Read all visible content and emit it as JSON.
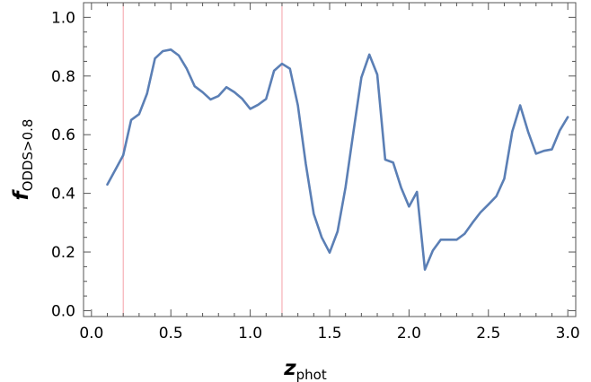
{
  "chart_data": {
    "type": "line",
    "xlabel": {
      "main": "z",
      "sub": "phot"
    },
    "ylabel": {
      "main": "f",
      "sub": "ODDS>0.8"
    },
    "xlim": [
      -0.05,
      3.05
    ],
    "ylim": [
      -0.02,
      1.05
    ],
    "x_ticks": [
      {
        "value": 0.0,
        "label": "0.0"
      },
      {
        "value": 0.5,
        "label": "0.5"
      },
      {
        "value": 1.0,
        "label": "1.0"
      },
      {
        "value": 1.5,
        "label": "1.5"
      },
      {
        "value": 2.0,
        "label": "2.0"
      },
      {
        "value": 2.5,
        "label": "2.5"
      },
      {
        "value": 3.0,
        "label": "3.0"
      }
    ],
    "y_ticks": [
      {
        "value": 0.0,
        "label": "0.0"
      },
      {
        "value": 0.2,
        "label": "0.2"
      },
      {
        "value": 0.4,
        "label": "0.4"
      },
      {
        "value": 0.6,
        "label": "0.6"
      },
      {
        "value": 0.8,
        "label": "0.8"
      },
      {
        "value": 1.0,
        "label": "1.0"
      }
    ],
    "vertical_lines": [
      0.2,
      1.2
    ],
    "vertical_line_color": "#f4a0a8",
    "line_color": "#5b7fb5",
    "series": [
      {
        "x": [
          0.1,
          0.15,
          0.2,
          0.25,
          0.3,
          0.35,
          0.4,
          0.45,
          0.5,
          0.55,
          0.6,
          0.65,
          0.7,
          0.75,
          0.8,
          0.85,
          0.9,
          0.95,
          1.0,
          1.05,
          1.1,
          1.15,
          1.2,
          1.25,
          1.3,
          1.35,
          1.4,
          1.45,
          1.5,
          1.55,
          1.6,
          1.65,
          1.7,
          1.75,
          1.8,
          1.85,
          1.9,
          1.95,
          2.0,
          2.05,
          2.1,
          2.15,
          2.2,
          2.25,
          2.3,
          2.35,
          2.4,
          2.45,
          2.5,
          2.55,
          2.6,
          2.65,
          2.7,
          2.75,
          2.8,
          2.85,
          2.9,
          2.95,
          3.0
        ],
        "y": [
          0.43,
          0.48,
          0.53,
          0.65,
          0.67,
          0.74,
          0.86,
          0.885,
          0.89,
          0.87,
          0.825,
          0.765,
          0.745,
          0.72,
          0.732,
          0.762,
          0.745,
          0.722,
          0.688,
          0.702,
          0.722,
          0.818,
          0.842,
          0.825,
          0.7,
          0.5,
          0.33,
          0.25,
          0.198,
          0.27,
          0.42,
          0.61,
          0.795,
          0.873,
          0.805,
          0.515,
          0.505,
          0.42,
          0.355,
          0.405,
          0.14,
          0.205,
          0.242,
          0.242,
          0.242,
          0.262,
          0.3,
          0.335,
          0.362,
          0.39,
          0.45,
          0.61,
          0.7,
          0.61,
          0.535,
          0.545,
          0.55,
          0.615,
          0.66
        ]
      }
    ]
  }
}
